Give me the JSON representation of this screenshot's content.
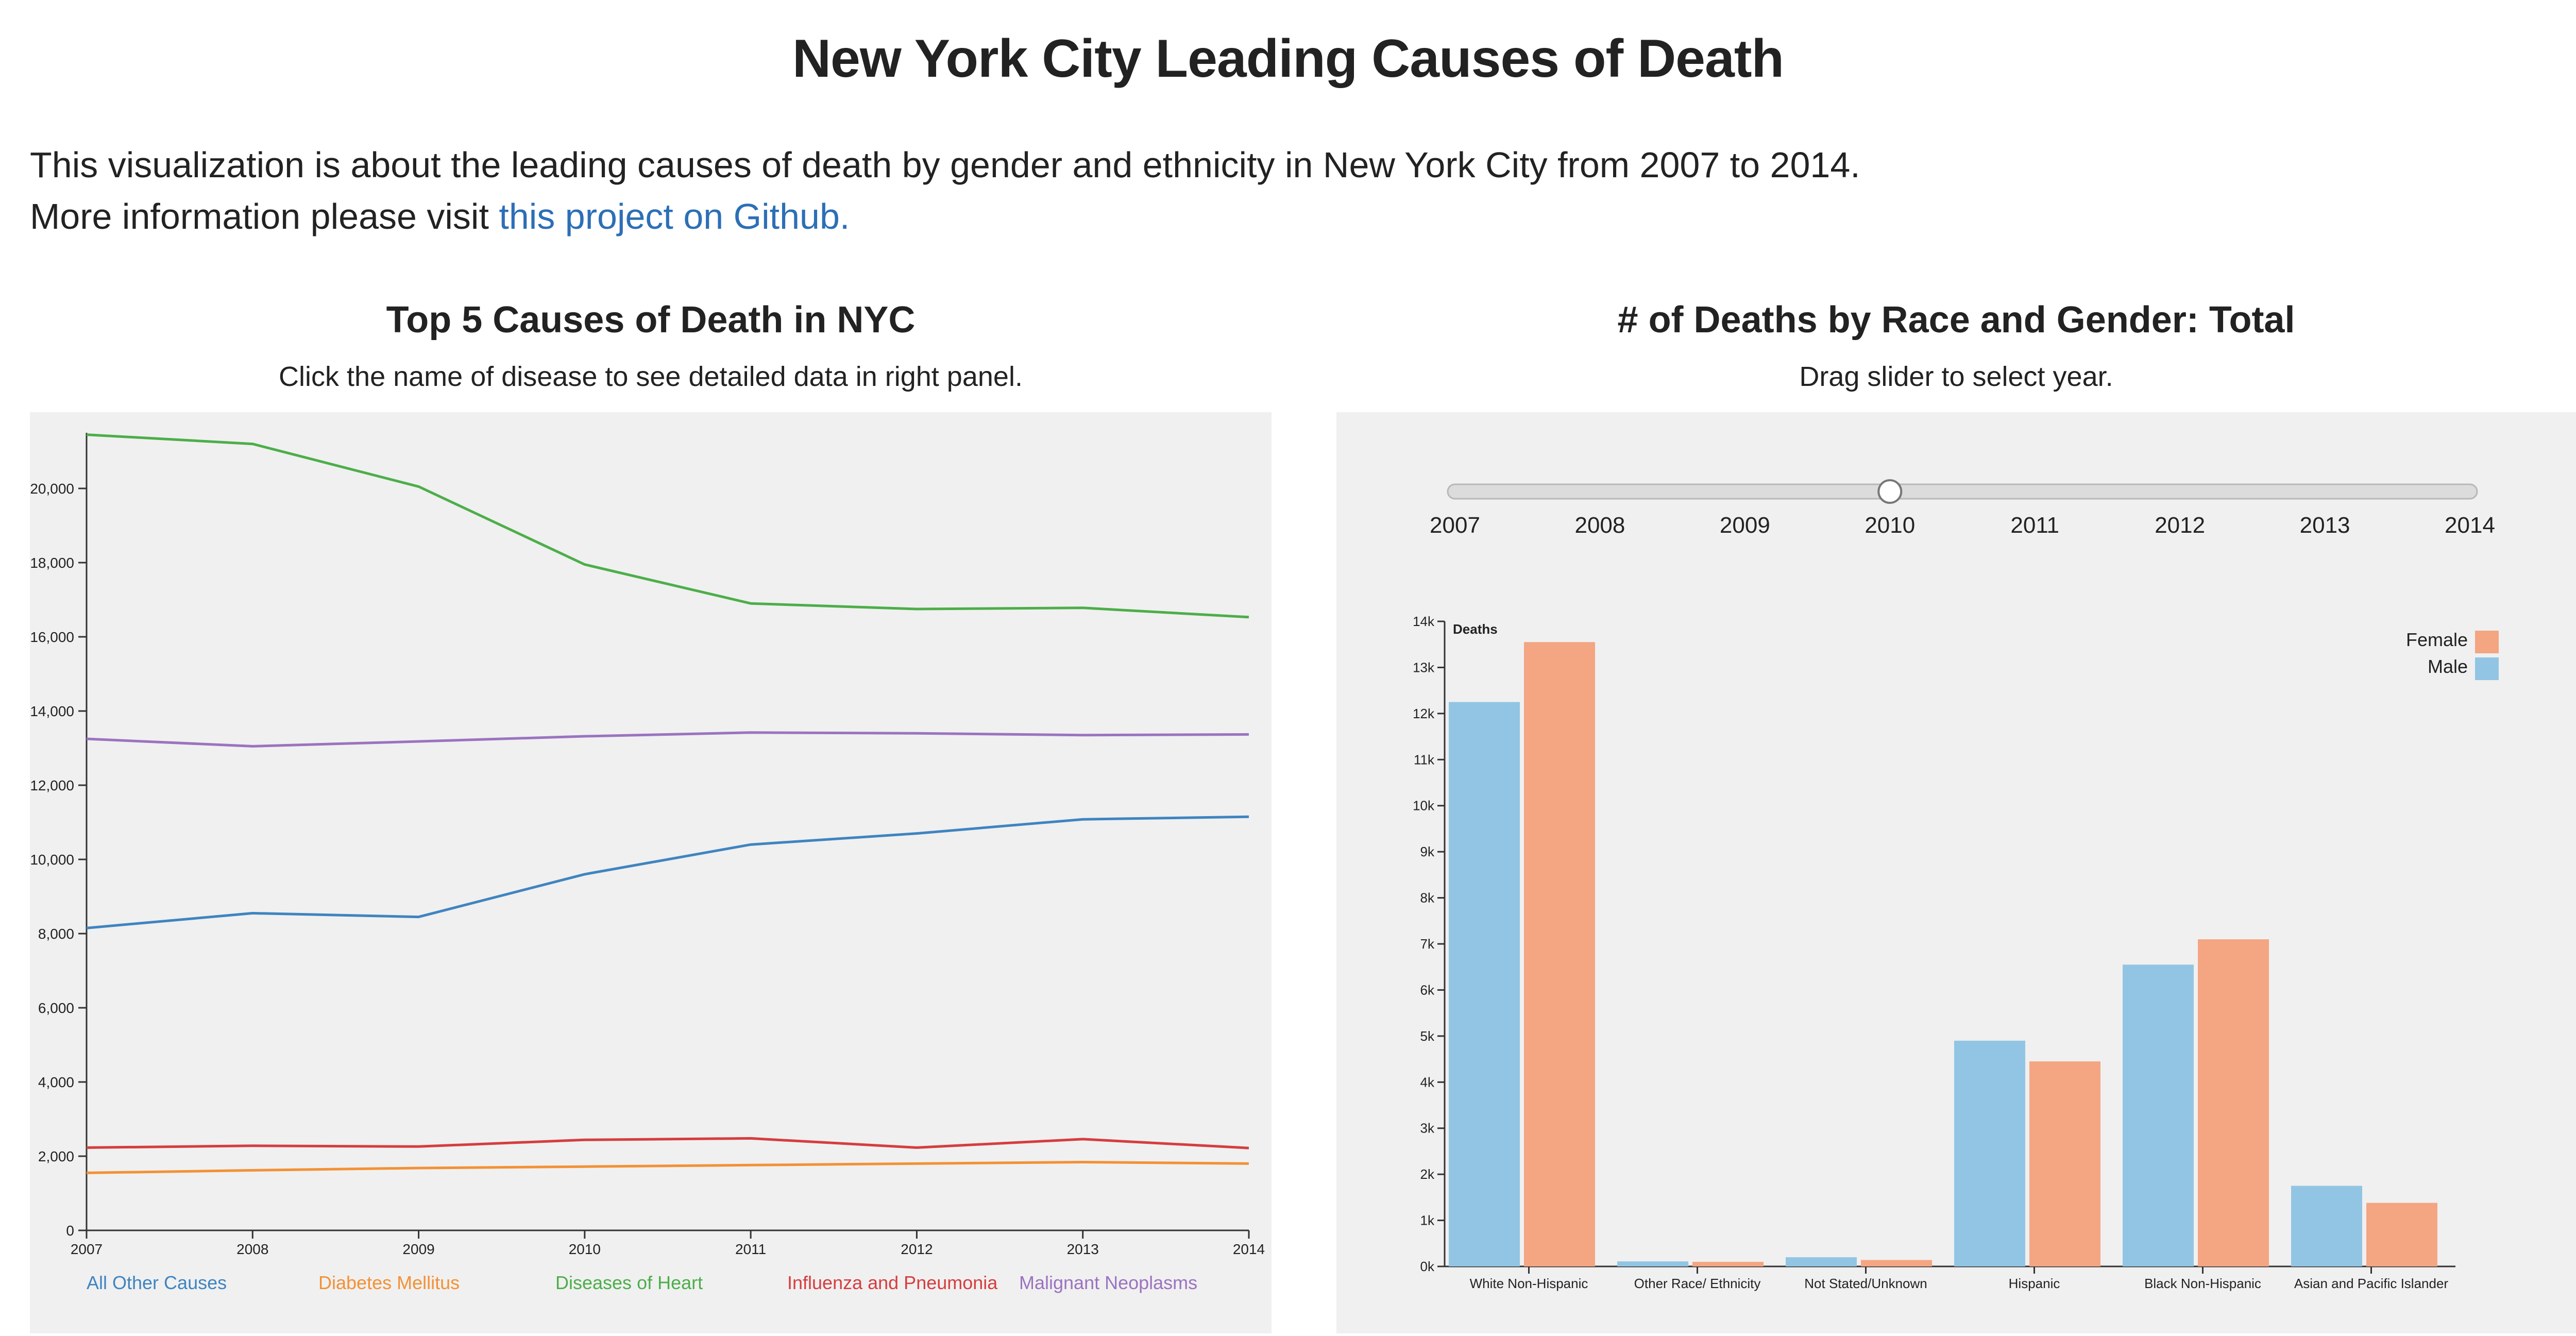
{
  "page": {
    "title": "New York City Leading Causes of Death",
    "intro_line1": "This visualization is about the leading causes of death by gender and ethnicity in New York City from 2007 to 2014.",
    "intro_line2_prefix": "More information please visit ",
    "intro_link_text": "this project on Github."
  },
  "left_panel": {
    "title": "Top 5 Causes of Death in NYC",
    "subtitle": "Click the name of disease to see detailed data in right panel."
  },
  "right_panel": {
    "title": "# of Deaths by Race and Gender: Total",
    "subtitle": "Drag slider to select year."
  },
  "slider": {
    "years": [
      "2007",
      "2008",
      "2009",
      "2010",
      "2011",
      "2012",
      "2013",
      "2014"
    ],
    "selected": "2010"
  },
  "colors": {
    "blue": "#3f84c0",
    "orange": "#f39135",
    "green": "#4cae49",
    "red": "#d63d3e",
    "purple": "#9b73c0",
    "male": "#92c5e3",
    "female": "#f4a582",
    "panel_bg": "#f0f0f0",
    "link": "#2c6fb6"
  },
  "chart_data": [
    {
      "type": "line",
      "x": [
        2007,
        2008,
        2009,
        2010,
        2011,
        2012,
        2013,
        2014
      ],
      "ylim": [
        0,
        21500
      ],
      "y_ticks": [
        0,
        2000,
        4000,
        6000,
        8000,
        10000,
        12000,
        14000,
        16000,
        18000,
        20000
      ],
      "series": [
        {
          "name": "All Other Causes",
          "color": "#3f84c0",
          "values": [
            8150,
            8550,
            8450,
            9600,
            10400,
            10700,
            11080,
            11150
          ]
        },
        {
          "name": "Diabetes Mellitus",
          "color": "#f39135",
          "values": [
            1550,
            1620,
            1680,
            1720,
            1760,
            1800,
            1840,
            1800
          ]
        },
        {
          "name": "Diseases of Heart",
          "color": "#4cae49",
          "values": [
            21450,
            21200,
            20050,
            17950,
            16900,
            16750,
            16780,
            16530
          ]
        },
        {
          "name": "Influenza and Pneumonia",
          "color": "#d63d3e",
          "values": [
            2230,
            2280,
            2260,
            2440,
            2480,
            2230,
            2460,
            2220
          ]
        },
        {
          "name": "Malignant Neoplasms",
          "color": "#9b73c0",
          "values": [
            13250,
            13050,
            13180,
            13320,
            13420,
            13400,
            13350,
            13370
          ]
        }
      ]
    },
    {
      "type": "bar",
      "ylabel": "Deaths",
      "ylim": [
        0,
        14000
      ],
      "y_ticks": [
        0,
        1000,
        2000,
        3000,
        4000,
        5000,
        6000,
        7000,
        8000,
        9000,
        10000,
        11000,
        12000,
        13000,
        14000
      ],
      "y_tick_labels": [
        "0k",
        "1k",
        "2k",
        "3k",
        "4k",
        "5k",
        "6k",
        "7k",
        "8k",
        "9k",
        "10k",
        "11k",
        "12k",
        "13k",
        "14k"
      ],
      "categories": [
        "White Non-Hispanic",
        "Other Race/ Ethnicity",
        "Not Stated/Unknown",
        "Hispanic",
        "Black Non-Hispanic",
        "Asian and Pacific Islander"
      ],
      "legend": [
        "Female",
        "Male"
      ],
      "series": [
        {
          "name": "Male",
          "color": "#92c5e3",
          "values": [
            12250,
            110,
            200,
            4900,
            6550,
            1750
          ]
        },
        {
          "name": "Female",
          "color": "#f4a582",
          "values": [
            13550,
            100,
            140,
            4450,
            7100,
            1380
          ]
        }
      ]
    }
  ]
}
